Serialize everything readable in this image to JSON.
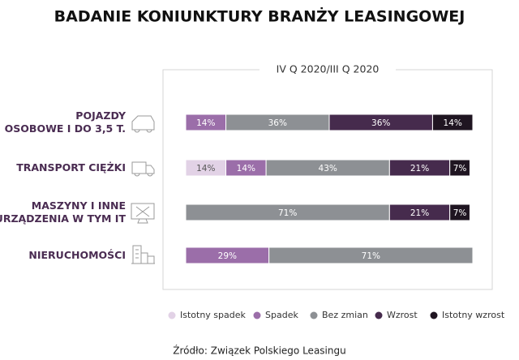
{
  "chart_data": {
    "type": "stacked-bar-horizontal",
    "title": "BADANIE KONIUNKTURY BRANŻY LEASINGOWEJ",
    "subtitle": "IV Q 2020/III Q 2020",
    "source": "Źródło: Związek Polskiego Leasingu",
    "categories": [
      [
        "POJAZDY",
        "OSOBOWE I DO 3,5 T."
      ],
      [
        "TRANSPORT CIĘŻKI"
      ],
      [
        "MASZYNY I INNE",
        "URZĄDZENIA W TYM IT"
      ],
      [
        "NIERUCHOMOŚCI"
      ]
    ],
    "xlim": [
      0,
      100
    ],
    "series": [
      {
        "name": "Istotny spadek",
        "color": "#e2d2e6",
        "values": [
          null,
          14,
          null,
          null
        ],
        "value_labels": [
          null,
          "14%",
          null,
          null
        ]
      },
      {
        "name": "Spadek",
        "color": "#9b6ea9",
        "values": [
          14,
          14,
          null,
          29
        ],
        "value_labels": [
          "14%",
          "14%",
          null,
          "29%"
        ]
      },
      {
        "name": "Bez zmian",
        "color": "#8d9094",
        "values": [
          36,
          43,
          71,
          71
        ],
        "value_labels": [
          "36%",
          "43%",
          "71%",
          "71%"
        ]
      },
      {
        "name": "Wzrost",
        "color": "#462b4d",
        "values": [
          36,
          21,
          21,
          null
        ],
        "value_labels": [
          "36%",
          "21%",
          "21%",
          null
        ]
      },
      {
        "name": "Istotny wzrost",
        "color": "#1f1521",
        "values": [
          14,
          7,
          7,
          null
        ],
        "value_labels": [
          "14%",
          "7%",
          "7%",
          null
        ]
      }
    ]
  }
}
